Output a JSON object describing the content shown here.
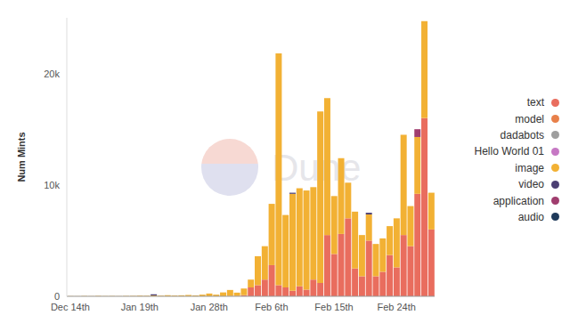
{
  "chart_data": {
    "type": "bar",
    "y_label": "Num Mints",
    "annotations": [
      "Dune"
    ],
    "stacked": true,
    "legend": "right",
    "grid": false,
    "categories": [
      "Dec 14th",
      null,
      null,
      null,
      null,
      null,
      null,
      null,
      null,
      null,
      "Jan 19th",
      null,
      null,
      null,
      null,
      null,
      null,
      null,
      null,
      null,
      "Jan 28th",
      null,
      null,
      null,
      null,
      null,
      null,
      null,
      null,
      "Feb 6th",
      null,
      null,
      null,
      null,
      null,
      null,
      null,
      null,
      "Feb 15th",
      null,
      null,
      null,
      null,
      null,
      null,
      null,
      null,
      "Feb 24th",
      null,
      null,
      null,
      null,
      null
    ],
    "ylim": [
      0,
      25000
    ],
    "yticks": [
      0,
      {
        "value": 10000,
        "label": "10k"
      },
      {
        "value": 20000,
        "label": "20k"
      }
    ],
    "series": [
      {
        "name": "text",
        "color": "#e96d5e",
        "values": [
          0,
          0,
          0,
          0,
          0,
          0,
          0,
          0,
          0,
          0,
          0,
          0,
          0,
          0,
          0,
          0,
          0,
          0,
          0,
          0,
          0,
          0,
          0,
          20,
          30,
          100,
          800,
          1000,
          1500,
          2800,
          1000,
          800,
          500,
          900,
          600,
          1500,
          1200,
          5500,
          3800,
          5600,
          7000,
          2500,
          1800,
          5000,
          1800,
          2200,
          3700,
          2600,
          5500,
          4500,
          9200,
          16000,
          6000
        ]
      },
      {
        "name": "model",
        "color": "#e8804a",
        "values": [
          0,
          0,
          0,
          0,
          0,
          0,
          0,
          0,
          0,
          0,
          0,
          0,
          0,
          0,
          0,
          0,
          0,
          0,
          0,
          0,
          0,
          0,
          0,
          0,
          0,
          0,
          0,
          0,
          0,
          0,
          0,
          0,
          0,
          0,
          0,
          0,
          0,
          0,
          0,
          0,
          0,
          0,
          0,
          0,
          0,
          0,
          0,
          0,
          0,
          0,
          0,
          0,
          0
        ]
      },
      {
        "name": "dadabots",
        "color": "#9e9e9e",
        "values": [
          0,
          0,
          0,
          0,
          0,
          0,
          0,
          0,
          0,
          0,
          0,
          0,
          0,
          0,
          0,
          0,
          0,
          0,
          0,
          0,
          0,
          0,
          0,
          0,
          0,
          0,
          0,
          0,
          0,
          0,
          0,
          0,
          0,
          0,
          0,
          0,
          0,
          0,
          0,
          0,
          0,
          0,
          0,
          0,
          0,
          0,
          0,
          0,
          0,
          0,
          0,
          0,
          0
        ]
      },
      {
        "name": "Hello World 01",
        "color": "#c678c4",
        "values": [
          0,
          0,
          0,
          0,
          0,
          0,
          0,
          0,
          0,
          0,
          0,
          0,
          0,
          0,
          0,
          0,
          0,
          0,
          0,
          0,
          0,
          0,
          0,
          0,
          0,
          0,
          0,
          0,
          0,
          0,
          0,
          0,
          0,
          0,
          0,
          0,
          0,
          0,
          0,
          0,
          0,
          0,
          0,
          0,
          0,
          0,
          0,
          0,
          0,
          0,
          0,
          0,
          0
        ]
      },
      {
        "name": "image",
        "color": "#f2b134",
        "values": [
          20,
          15,
          30,
          20,
          40,
          25,
          30,
          20,
          35,
          40,
          60,
          50,
          80,
          60,
          100,
          70,
          90,
          120,
          80,
          150,
          250,
          150,
          350,
          550,
          300,
          600,
          700,
          2600,
          3000,
          5500,
          20800,
          6500,
          8700,
          8800,
          8900,
          8300,
          15400,
          12300,
          5200,
          6800,
          3200,
          5100,
          3700,
          2350,
          2900,
          3000,
          2600,
          4400,
          9000,
          3600,
          5100,
          8700,
          3300
        ]
      },
      {
        "name": "video",
        "color": "#4b3f72",
        "values": [
          0,
          0,
          0,
          0,
          0,
          0,
          0,
          0,
          0,
          0,
          0,
          0,
          100,
          0,
          0,
          0,
          0,
          0,
          0,
          0,
          0,
          0,
          0,
          0,
          0,
          0,
          0,
          0,
          0,
          0,
          0,
          0,
          100,
          0,
          0,
          0,
          0,
          0,
          0,
          0,
          0,
          0,
          0,
          150,
          0,
          0,
          0,
          0,
          0,
          0,
          0,
          0,
          0
        ]
      },
      {
        "name": "application",
        "color": "#a03d6e",
        "values": [
          0,
          0,
          0,
          0,
          0,
          0,
          0,
          0,
          0,
          0,
          0,
          0,
          0,
          0,
          0,
          0,
          0,
          0,
          0,
          0,
          0,
          0,
          0,
          0,
          0,
          0,
          0,
          0,
          0,
          0,
          0,
          0,
          0,
          0,
          0,
          0,
          0,
          0,
          0,
          0,
          0,
          0,
          0,
          0,
          0,
          0,
          0,
          0,
          0,
          0,
          700,
          0,
          0
        ]
      },
      {
        "name": "audio",
        "color": "#1f3a5a",
        "values": [
          0,
          0,
          0,
          0,
          0,
          0,
          0,
          0,
          0,
          0,
          0,
          0,
          0,
          0,
          0,
          0,
          0,
          0,
          0,
          0,
          0,
          0,
          0,
          0,
          0,
          0,
          0,
          0,
          0,
          0,
          0,
          0,
          0,
          0,
          0,
          0,
          0,
          0,
          0,
          0,
          0,
          0,
          0,
          0,
          0,
          0,
          0,
          0,
          0,
          0,
          0,
          0,
          0
        ]
      }
    ]
  }
}
